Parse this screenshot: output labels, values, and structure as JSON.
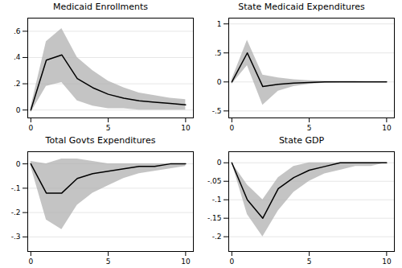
{
  "chart_data": [
    {
      "type": "line",
      "title": "Medicaid Enrollments",
      "x": [
        0,
        1,
        2,
        3,
        4,
        5,
        6,
        7,
        8,
        9,
        10
      ],
      "values": [
        0.0,
        0.38,
        0.42,
        0.24,
        0.17,
        0.12,
        0.09,
        0.07,
        0.06,
        0.05,
        0.04
      ],
      "ci_upper": [
        0.02,
        0.52,
        0.62,
        0.4,
        0.3,
        0.22,
        0.17,
        0.13,
        0.11,
        0.09,
        0.08
      ],
      "ci_lower": [
        -0.02,
        0.18,
        0.21,
        0.07,
        0.03,
        0.01,
        0.01,
        0.0,
        0.0,
        0.0,
        0.0
      ],
      "xlim": [
        -0.2,
        10.5
      ],
      "xticks": [
        0,
        5,
        10
      ],
      "ylim": [
        -0.06,
        0.7
      ],
      "yticks": [
        0,
        {
          "value": 0.2,
          "label": ".2"
        },
        {
          "value": 0.4,
          "label": ".4"
        },
        {
          "value": 0.6,
          "label": ".6"
        }
      ],
      "grid": true
    },
    {
      "type": "line",
      "title": "State Medicaid Expenditures",
      "x": [
        0,
        1,
        2,
        3,
        4,
        5,
        6,
        7,
        8,
        9,
        10
      ],
      "values": [
        0.0,
        0.5,
        -0.08,
        -0.04,
        -0.02,
        -0.01,
        0.0,
        0.0,
        0.0,
        0.0,
        0.0
      ],
      "ci_upper": [
        0.04,
        0.72,
        0.12,
        0.07,
        0.04,
        0.02,
        0.01,
        0.01,
        0.01,
        0.0,
        0.0
      ],
      "ci_lower": [
        -0.04,
        0.28,
        -0.4,
        -0.16,
        -0.08,
        -0.04,
        -0.02,
        -0.01,
        -0.01,
        0.0,
        0.0
      ],
      "xlim": [
        -0.2,
        10.5
      ],
      "xticks": [
        0,
        5,
        10
      ],
      "ylim": [
        -0.62,
        1.1
      ],
      "yticks": [
        {
          "value": -0.5,
          "label": "-.5"
        },
        0,
        {
          "value": 0.5,
          "label": ".5"
        },
        1
      ],
      "grid": true
    },
    {
      "type": "line",
      "title": "Total Govts Expenditures",
      "x": [
        0,
        1,
        2,
        3,
        4,
        5,
        6,
        7,
        8,
        9,
        10
      ],
      "values": [
        0.0,
        -0.12,
        -0.12,
        -0.06,
        -0.04,
        -0.03,
        -0.02,
        -0.01,
        -0.01,
        0.0,
        0.0
      ],
      "ci_upper": [
        0.01,
        0.0,
        0.02,
        0.02,
        0.01,
        0.0,
        0.0,
        0.0,
        0.0,
        0.0,
        0.0
      ],
      "ci_lower": [
        -0.01,
        -0.23,
        -0.27,
        -0.17,
        -0.12,
        -0.09,
        -0.06,
        -0.04,
        -0.03,
        -0.02,
        -0.01
      ],
      "xlim": [
        -0.2,
        10.5
      ],
      "xticks": [
        0,
        5,
        10
      ],
      "ylim": [
        -0.36,
        0.05
      ],
      "yticks": [
        {
          "value": -0.3,
          "label": "-.3"
        },
        {
          "value": -0.2,
          "label": "-.2"
        },
        {
          "value": -0.1,
          "label": "-.1"
        },
        0
      ],
      "grid": true
    },
    {
      "type": "line",
      "title": "State GDP",
      "x": [
        0,
        1,
        2,
        3,
        4,
        5,
        6,
        7,
        8,
        9,
        10
      ],
      "values": [
        0.0,
        -0.1,
        -0.15,
        -0.07,
        -0.04,
        -0.02,
        -0.01,
        0.0,
        0.0,
        0.0,
        0.0
      ],
      "ci_upper": [
        0.0,
        -0.06,
        -0.1,
        -0.04,
        -0.01,
        0.0,
        0.0,
        0.0,
        0.0,
        0.0,
        0.0
      ],
      "ci_lower": [
        0.0,
        -0.14,
        -0.2,
        -0.13,
        -0.08,
        -0.05,
        -0.03,
        -0.02,
        -0.01,
        -0.01,
        0.0
      ],
      "xlim": [
        -0.2,
        10.5
      ],
      "xticks": [
        0,
        5,
        10
      ],
      "ylim": [
        -0.24,
        0.03
      ],
      "yticks": [
        {
          "value": -0.2,
          "label": "-.2"
        },
        {
          "value": -0.15,
          "label": "-.15"
        },
        {
          "value": -0.1,
          "label": "-.1"
        },
        {
          "value": -0.05,
          "label": "-.05"
        },
        0
      ],
      "grid": true
    }
  ]
}
